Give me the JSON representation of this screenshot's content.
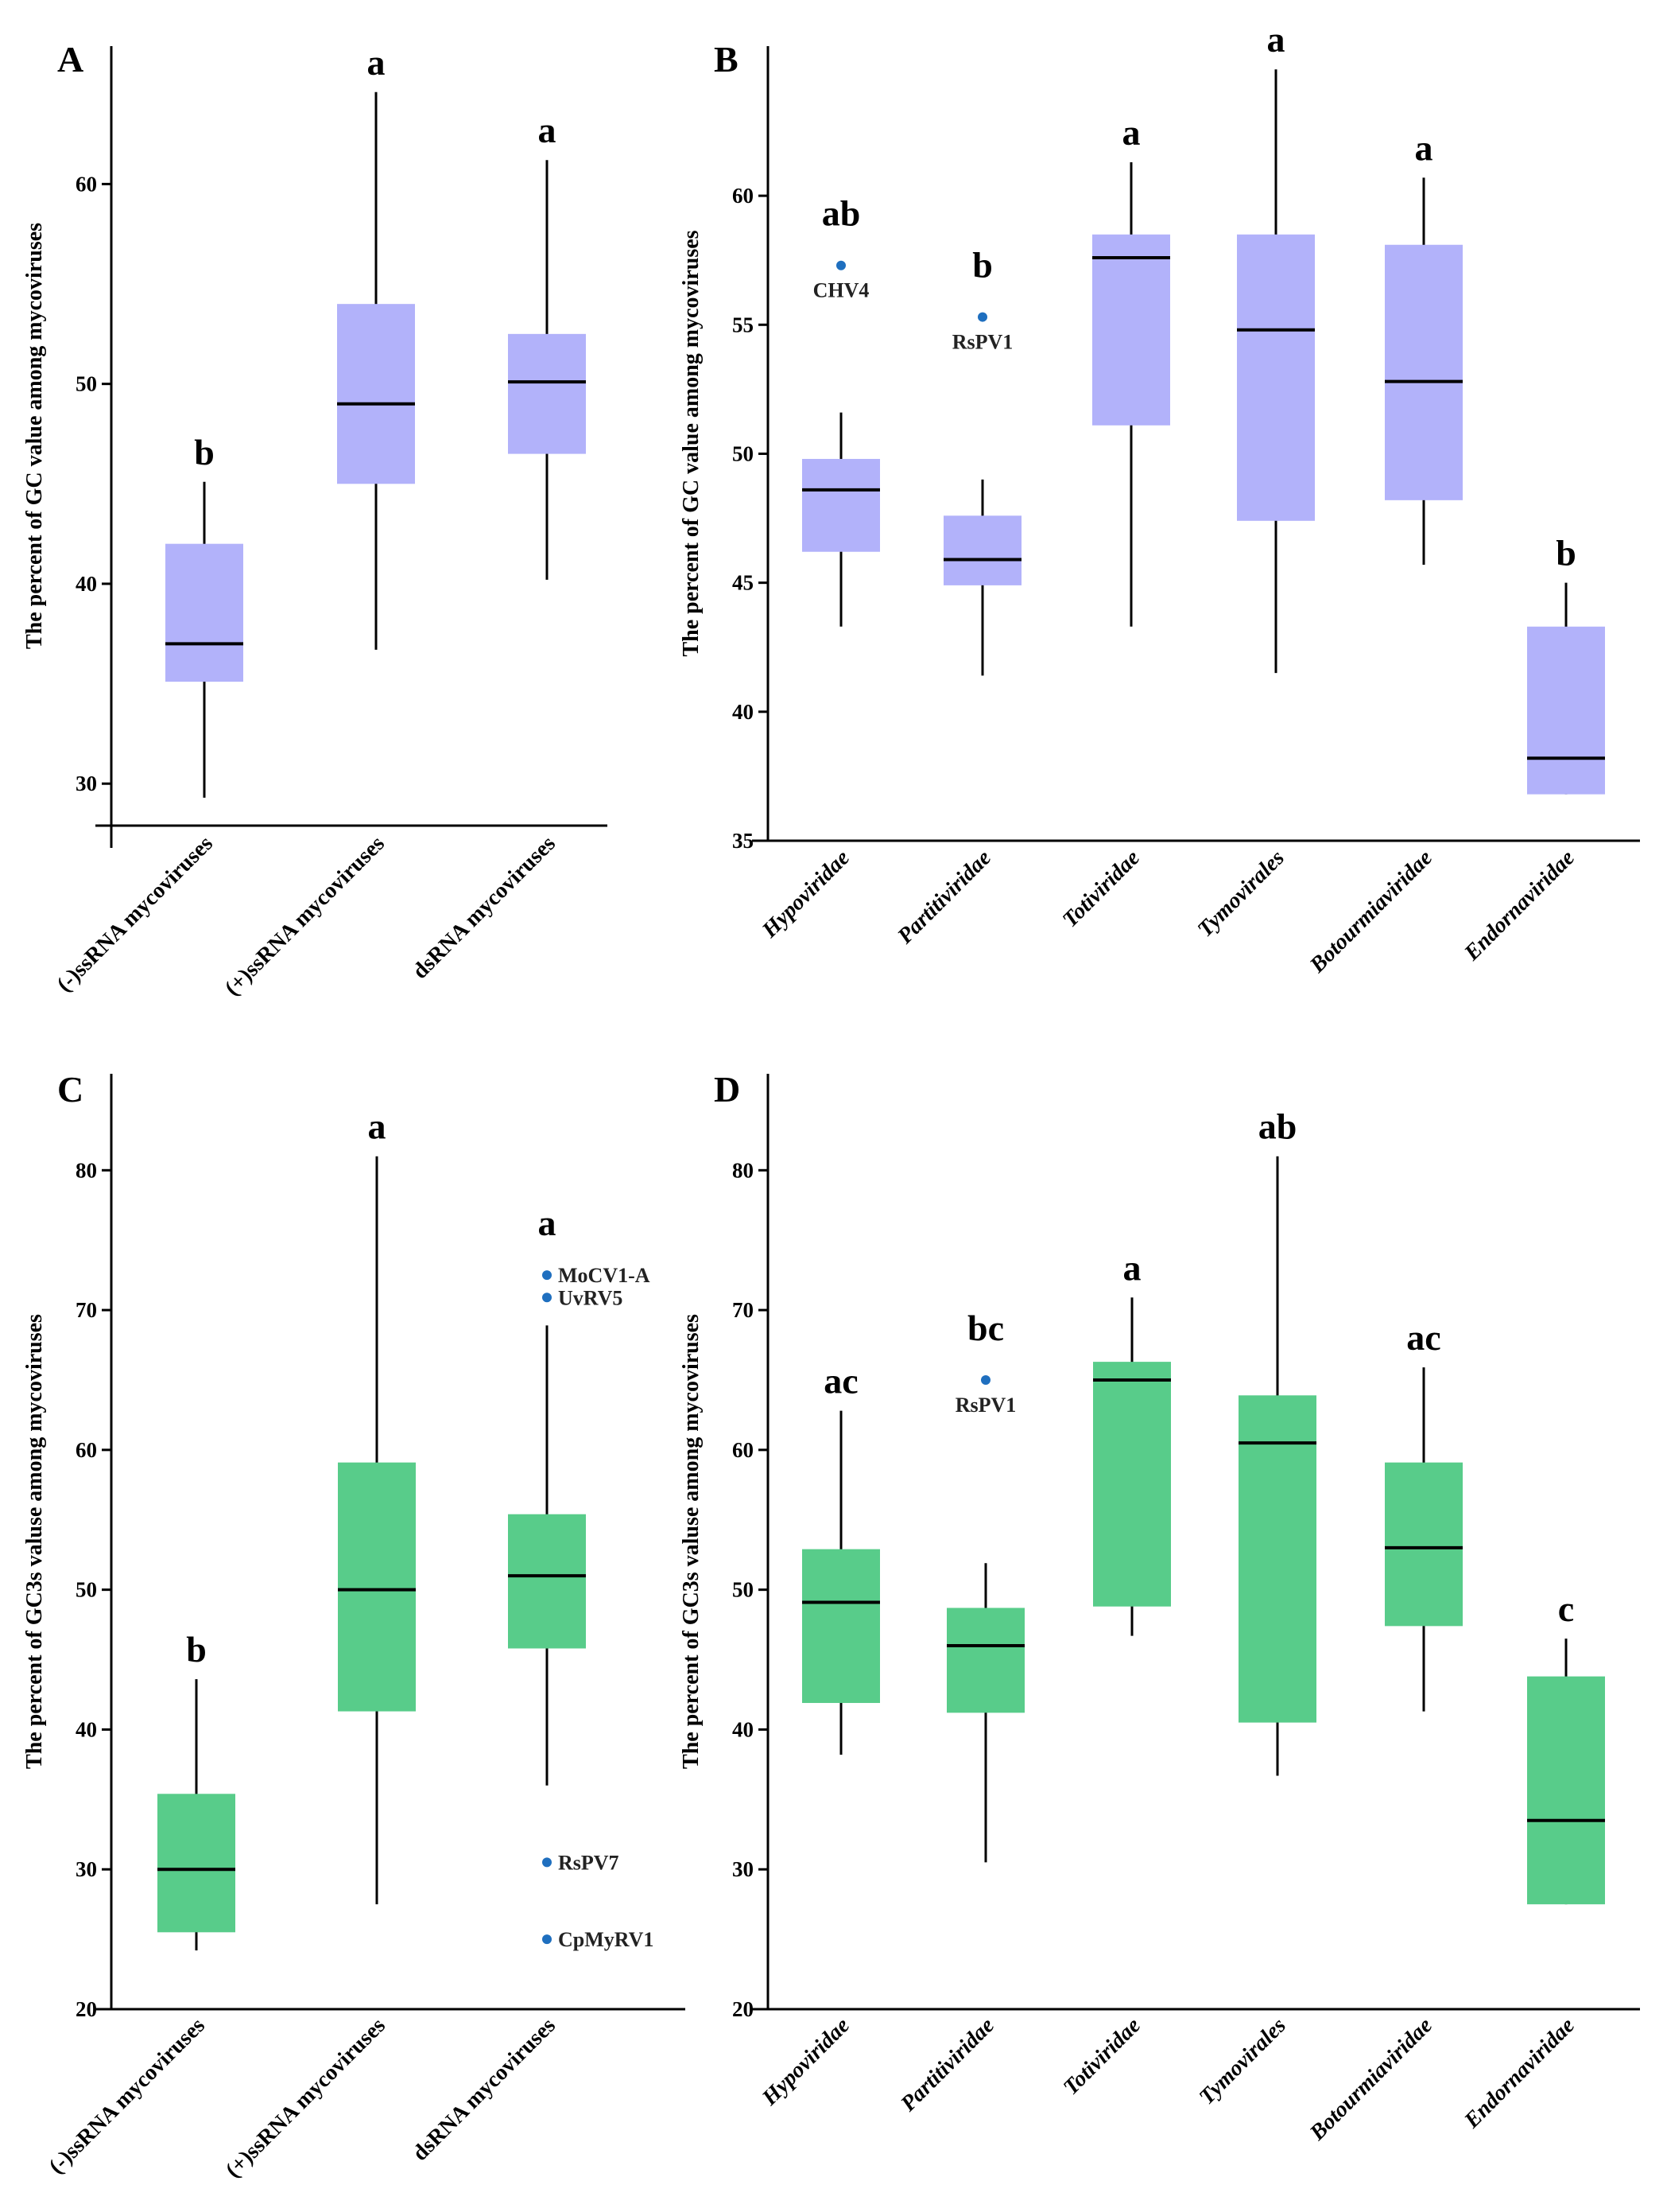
{
  "figure": {
    "colors": {
      "purple_box": "#b2b2fa",
      "green_box": "#58cc8a",
      "axis": "#000000",
      "outlier": "#1f6fbf"
    }
  },
  "chart_data": [
    {
      "panel": "A",
      "type": "boxplot",
      "ylabel": "The percent of GC value among mycoviruses",
      "ylim": [
        27.9,
        66.9
      ],
      "yticks": [
        30,
        40,
        50,
        60
      ],
      "box_color": "purple_box",
      "italic_categories": false,
      "categories": [
        "(-)ssRNA mycoviruses",
        "(+)ssRNA mycoviruses",
        "dsRNA mycoviruses"
      ],
      "boxes": [
        {
          "category": "(-)ssRNA mycoviruses",
          "min": 29.3,
          "q1": 35.1,
          "median": 37.0,
          "q3": 42.0,
          "max": 45.1,
          "letter": "b",
          "outliers": []
        },
        {
          "category": "(+)ssRNA mycoviruses",
          "min": 36.7,
          "q1": 45.0,
          "median": 49.0,
          "q3": 54.0,
          "max": 64.6,
          "letter": "a",
          "outliers": []
        },
        {
          "category": "dsRNA mycoviruses",
          "min": 40.2,
          "q1": 46.5,
          "median": 50.1,
          "q3": 52.5,
          "max": 61.2,
          "letter": "a",
          "outliers": []
        }
      ]
    },
    {
      "panel": "B",
      "type": "boxplot",
      "ylabel": "The percent of GC value among mycoviruses",
      "ylim": [
        35,
        65.8
      ],
      "yticks": [
        35,
        40,
        45,
        50,
        55,
        60
      ],
      "box_color": "purple_box",
      "italic_categories": true,
      "categories": [
        "Hypoviridae",
        "Partitiviridae",
        "Totiviridae",
        "Tymovirales",
        "Botourmiaviridae",
        "Endornaviridae"
      ],
      "boxes": [
        {
          "category": "Hypoviridae",
          "min": 43.3,
          "q1": 46.2,
          "median": 48.6,
          "q3": 49.8,
          "max": 51.6,
          "letter": "ab",
          "outliers": [
            {
              "value": 57.3,
              "label": "CHV4"
            }
          ]
        },
        {
          "category": "Partitiviridae",
          "min": 41.4,
          "q1": 44.9,
          "median": 45.9,
          "q3": 47.6,
          "max": 49.0,
          "letter": "b",
          "outliers": [
            {
              "value": 55.3,
              "label": "RsPV1"
            }
          ]
        },
        {
          "category": "Totiviridae",
          "min": 43.3,
          "q1": 51.1,
          "median": 57.6,
          "q3": 58.5,
          "max": 61.3,
          "letter": "a",
          "outliers": []
        },
        {
          "category": "Tymovirales",
          "min": 41.5,
          "q1": 47.4,
          "median": 54.8,
          "q3": 58.5,
          "max": 64.9,
          "letter": "a",
          "outliers": []
        },
        {
          "category": "Botourmiaviridae",
          "min": 45.7,
          "q1": 48.2,
          "median": 52.8,
          "q3": 58.1,
          "max": 60.7,
          "letter": "a",
          "outliers": []
        },
        {
          "category": "Endornaviridae",
          "min": 36.8,
          "q1": 36.8,
          "median": 38.2,
          "q3": 43.3,
          "max": 45.0,
          "letter": "b",
          "outliers": []
        }
      ]
    },
    {
      "panel": "C",
      "type": "boxplot",
      "ylabel": "The percent of GC3s valuse among mycoviruses",
      "ylim": [
        20,
        86.9
      ],
      "yticks": [
        20,
        30,
        40,
        50,
        60,
        70,
        80
      ],
      "box_color": "green_box",
      "italic_categories": false,
      "categories": [
        "(-)ssRNA mycoviruses",
        "(+)ssRNA mycoviruses",
        "dsRNA mycoviruses"
      ],
      "boxes": [
        {
          "category": "(-)ssRNA mycoviruses",
          "min": 24.2,
          "q1": 25.5,
          "median": 30.0,
          "q3": 35.4,
          "max": 43.6,
          "letter": "b",
          "outliers": []
        },
        {
          "category": "(+)ssRNA mycoviruses",
          "min": 27.5,
          "q1": 41.3,
          "median": 50.0,
          "q3": 59.1,
          "max": 81.0,
          "letter": "a",
          "outliers": []
        },
        {
          "category": "dsRNA mycoviruses",
          "min": 36.0,
          "q1": 45.8,
          "median": 51.0,
          "q3": 55.4,
          "max": 68.9,
          "letter": "a",
          "outliers": [
            {
              "value": 72.5,
              "label": "MoCV1-A"
            },
            {
              "value": 70.9,
              "label": "UvRV5"
            },
            {
              "value": 30.5,
              "label": "RsPV7"
            },
            {
              "value": 25.0,
              "label": "CpMyRV1"
            }
          ]
        }
      ]
    },
    {
      "panel": "D",
      "type": "boxplot",
      "ylabel": "The percent of GC3s valuse among mycoviruses",
      "ylim": [
        20,
        86.9
      ],
      "yticks": [
        20,
        30,
        40,
        50,
        60,
        70,
        80
      ],
      "box_color": "green_box",
      "italic_categories": true,
      "categories": [
        "Hypoviridae",
        "Partitiviridae",
        "Totiviridae",
        "Tymovirales",
        "Botourmiaviridae",
        "Endornaviridae"
      ],
      "boxes": [
        {
          "category": "Hypoviridae",
          "min": 38.2,
          "q1": 41.9,
          "median": 49.1,
          "q3": 52.9,
          "max": 62.8,
          "letter": "ac",
          "outliers": []
        },
        {
          "category": "Partitiviridae",
          "min": 30.5,
          "q1": 41.2,
          "median": 46.0,
          "q3": 48.7,
          "max": 51.9,
          "letter": "bc",
          "outliers": [
            {
              "value": 65.0,
              "label": "RsPV1"
            }
          ]
        },
        {
          "category": "Totiviridae",
          "min": 46.7,
          "q1": 48.8,
          "median": 65.0,
          "q3": 66.3,
          "max": 70.9,
          "letter": "a",
          "outliers": []
        },
        {
          "category": "Tymovirales",
          "min": 36.7,
          "q1": 40.5,
          "median": 60.5,
          "q3": 63.9,
          "max": 81.0,
          "letter": "ab",
          "outliers": []
        },
        {
          "category": "Botourmiaviridae",
          "min": 41.3,
          "q1": 47.4,
          "median": 53.0,
          "q3": 59.1,
          "max": 65.9,
          "letter": "ac",
          "outliers": []
        },
        {
          "category": "Endornaviridae",
          "min": 27.5,
          "q1": 27.5,
          "median": 33.5,
          "q3": 43.8,
          "max": 46.5,
          "letter": "c",
          "outliers": []
        }
      ]
    }
  ]
}
